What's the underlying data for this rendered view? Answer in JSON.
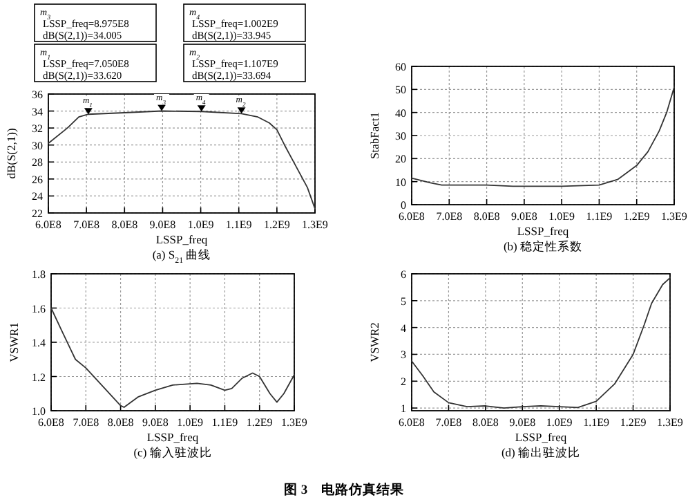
{
  "chart_data": [
    {
      "type": "line",
      "title": "(a) S$_{21}$ 曲线",
      "xlabel": "LSSP_freq",
      "ylabel": "dB(S(2,1))",
      "grid": true,
      "xlim": [
        600000000,
        1300000000
      ],
      "xticks": [
        {
          "value": 600000000,
          "label": "6.0E8"
        },
        {
          "value": 700000000,
          "label": "7.0E8"
        },
        {
          "value": 800000000,
          "label": "8.0E8"
        },
        {
          "value": 900000000,
          "label": "9.0E8"
        },
        {
          "value": 1000000000,
          "label": "1.0E9"
        },
        {
          "value": 1100000000,
          "label": "1.1E9"
        },
        {
          "value": 1200000000,
          "label": "1.2E9"
        },
        {
          "value": 1300000000,
          "label": "1.3E9"
        }
      ],
      "ylim": [
        22,
        36
      ],
      "yticks": [
        22,
        24,
        26,
        28,
        30,
        32,
        34,
        36
      ],
      "series": [
        {
          "color": "#333333",
          "x": [
            600000000,
            650000000,
            680000000,
            705000000,
            800000000,
            897500000,
            1002000000,
            1107000000,
            1150000000,
            1180000000,
            1200000000,
            1220000000,
            1250000000,
            1280000000,
            1300000000
          ],
          "values": [
            30.2,
            32,
            33.3,
            33.62,
            33.8,
            34.005,
            33.945,
            33.694,
            33.3,
            32.6,
            31.8,
            30,
            27.5,
            25,
            22.5
          ]
        }
      ],
      "annotations": [
        "m$_{3}$\nLSSP_freq=8.975E8\ndB(S(2,1))=34.005",
        "m$_{4}$\nLSSP_freq=1.002E9\ndB(S(2,1))=33.945",
        "m$_{1}$\nLSSP_freq=7.050E8\ndB(S(2,1))=33.620",
        "m$_{2}$\nLSSP_freq=1.107E9\ndB(S(2,1))=33.694",
        {
          "text": "m$_{1}$",
          "x": 705000000,
          "y": 33.62
        },
        {
          "text": "m$_{3}$",
          "x": 897500000,
          "y": 34.005
        },
        {
          "text": "m$_{4}$",
          "x": 1002000000,
          "y": 33.945
        },
        {
          "text": "m$_{2}$",
          "x": 1107000000,
          "y": 33.694
        }
      ]
    },
    {
      "type": "line",
      "title": "(b) 稳定性系数",
      "xlabel": "LSSP_freq",
      "ylabel": "StabFact1",
      "grid": true,
      "xlim": [
        600000000,
        1300000000
      ],
      "xticks": [
        {
          "value": 600000000,
          "label": "6.0E8"
        },
        {
          "value": 700000000,
          "label": "7.0E8"
        },
        {
          "value": 800000000,
          "label": "8.0E8"
        },
        {
          "value": 900000000,
          "label": "9.0E8"
        },
        {
          "value": 1000000000,
          "label": "1.0E9"
        },
        {
          "value": 1100000000,
          "label": "1.1E9"
        },
        {
          "value": 1200000000,
          "label": "1.2E9"
        },
        {
          "value": 1300000000,
          "label": "1.3E9"
        }
      ],
      "ylim": [
        0,
        60
      ],
      "yticks": [
        0,
        10,
        20,
        30,
        40,
        50,
        60
      ],
      "series": [
        {
          "color": "#333333",
          "x": [
            600000000,
            650000000,
            680000000,
            800000000,
            870000000,
            1000000000,
            1100000000,
            1150000000,
            1200000000,
            1230000000,
            1260000000,
            1280000000,
            1300000000
          ],
          "values": [
            11.5,
            9.5,
            8.5,
            8.5,
            8,
            8,
            8.5,
            11,
            17,
            23,
            32,
            40,
            51
          ]
        }
      ]
    },
    {
      "type": "line",
      "title": "(c) 输入驻波比",
      "xlabel": "LSSP_freq",
      "ylabel": "VSWR1",
      "grid": true,
      "xlim": [
        600000000,
        1300000000
      ],
      "xticks": [
        {
          "value": 600000000,
          "label": "6.0E8"
        },
        {
          "value": 700000000,
          "label": "7.0E8"
        },
        {
          "value": 800000000,
          "label": "8.0E8"
        },
        {
          "value": 900000000,
          "label": "9.0E8"
        },
        {
          "value": 1000000000,
          "label": "1.0E9"
        },
        {
          "value": 1100000000,
          "label": "1.1E9"
        },
        {
          "value": 1200000000,
          "label": "1.2E9"
        },
        {
          "value": 1300000000,
          "label": "1.3E9"
        }
      ],
      "ylim": [
        1,
        1.8
      ],
      "yticks": [
        {
          "value": 1,
          "label": "1.0"
        },
        1.2,
        1.4,
        1.6,
        1.8
      ],
      "series": [
        {
          "color": "#333333",
          "x": [
            600000000,
            630000000,
            670000000,
            700000000,
            750000000,
            800000000,
            810000000,
            850000000,
            900000000,
            950000000,
            1020000000,
            1060000000,
            1100000000,
            1120000000,
            1150000000,
            1180000000,
            1200000000,
            1230000000,
            1250000000,
            1270000000,
            1300000000
          ],
          "values": [
            1.6,
            1.47,
            1.3,
            1.25,
            1.14,
            1.03,
            1.02,
            1.08,
            1.12,
            1.15,
            1.16,
            1.15,
            1.12,
            1.13,
            1.19,
            1.22,
            1.2,
            1.1,
            1.05,
            1.1,
            1.21
          ]
        }
      ]
    },
    {
      "type": "line",
      "title": "(d) 输出驻波比",
      "xlabel": "LSSP_freq",
      "ylabel": "VSWR2",
      "grid": true,
      "xlim": [
        600000000,
        1300000000
      ],
      "xticks": [
        {
          "value": 600000000,
          "label": "6.0E8"
        },
        {
          "value": 700000000,
          "label": "7.0E8"
        },
        {
          "value": 800000000,
          "label": "8.0E8"
        },
        {
          "value": 900000000,
          "label": "9.0E8"
        },
        {
          "value": 1000000000,
          "label": "1.0E9"
        },
        {
          "value": 1100000000,
          "label": "1.1E9"
        },
        {
          "value": 1200000000,
          "label": "1.2E9"
        },
        {
          "value": 1300000000,
          "label": "1.3E9"
        }
      ],
      "ylim": [
        0.9,
        6
      ],
      "yticks": [
        1,
        2,
        3,
        4,
        5,
        6
      ],
      "series": [
        {
          "color": "#333333",
          "x": [
            600000000,
            630000000,
            660000000,
            700000000,
            750000000,
            800000000,
            850000000,
            900000000,
            950000000,
            1000000000,
            1050000000,
            1100000000,
            1150000000,
            1200000000,
            1230000000,
            1250000000,
            1280000000,
            1300000000
          ],
          "values": [
            2.75,
            2.2,
            1.6,
            1.2,
            1.05,
            1.08,
            1,
            1.05,
            1.08,
            1.05,
            1.02,
            1.25,
            1.9,
            3,
            4.1,
            4.9,
            5.6,
            5.85
          ]
        }
      ],
      "annotations": [
        "图 3　电路仿真结果"
      ]
    }
  ]
}
